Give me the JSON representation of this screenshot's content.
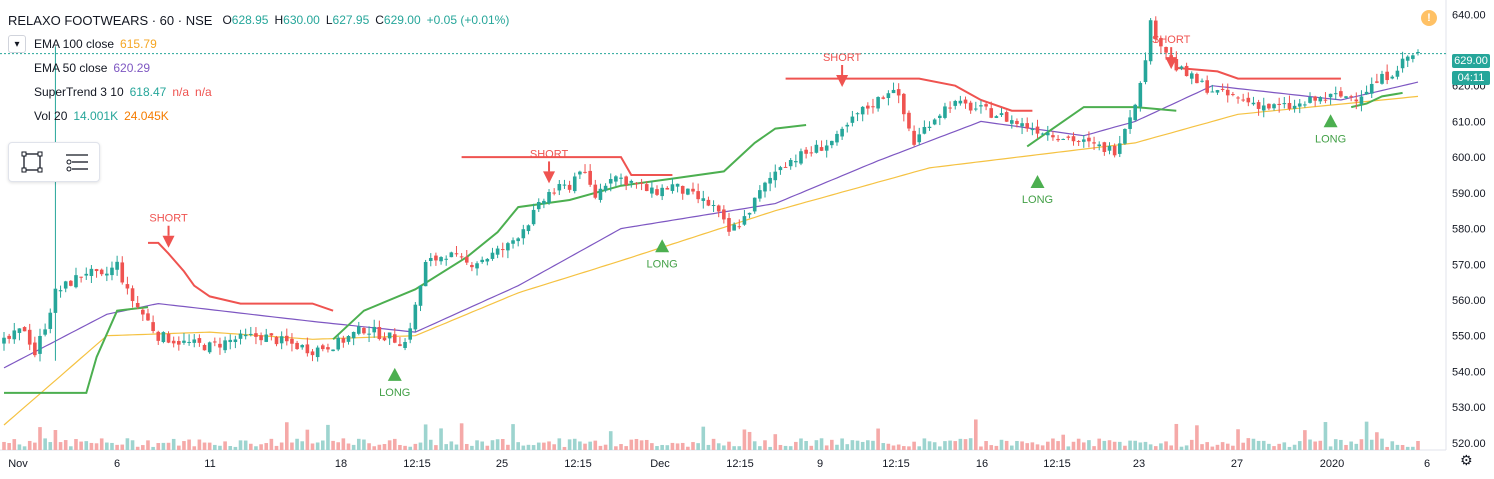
{
  "header": {
    "symbol_title": "RELAXO FOOTWEARS · 60 · NSE",
    "open_label": "O",
    "open": "628.95",
    "high_label": "H",
    "high": "630.00",
    "low_label": "L",
    "low": "627.95",
    "close_label": "C",
    "close": "629.00",
    "change": "+0.05 (+0.01%)"
  },
  "indicators": [
    {
      "name": "EMA 100 close",
      "values": [
        "615.79"
      ],
      "colors": [
        "#f5a623"
      ]
    },
    {
      "name": "EMA 50 close",
      "values": [
        "620.29"
      ],
      "colors": [
        "#7e57c2"
      ]
    },
    {
      "name": "SuperTrend 3 10",
      "values": [
        "618.47",
        "n/a",
        "n/a"
      ],
      "colors": [
        "#26a69a",
        "#ef5350",
        "#ef5350"
      ]
    },
    {
      "name": "Vol 20",
      "values": [
        "14.001K",
        "24.045K"
      ],
      "colors": [
        "#26a69a",
        "#f57c00"
      ]
    }
  ],
  "toggle_icon": "chevron-down-icon",
  "last_price_tag": "629.00",
  "countdown_tag": "04:11",
  "colors": {
    "up": "#26a69a",
    "down": "#ef5350",
    "supertrend_up": "#4caf50",
    "supertrend_down": "#ef5350",
    "ema100": "#f5c242",
    "ema50": "#7e57c2",
    "last_price": "#26a69a",
    "countdown": "#26a69a"
  },
  "chart_data": {
    "type": "candlestick",
    "title": "RELAXO FOOTWEARS · 60 · NSE",
    "x_ticks": [
      "Nov",
      "6",
      "11",
      "18",
      "12:15",
      "25",
      "12:15",
      "Dec",
      "12:15",
      "9",
      "12:15",
      "16",
      "12:15",
      "23",
      "27",
      "2020",
      "6"
    ],
    "y_ticks": [
      "520.00",
      "530.00",
      "540.00",
      "550.00",
      "560.00",
      "570.00",
      "580.00",
      "590.00",
      "600.00",
      "610.00",
      "620.00",
      "629.00",
      "640.00"
    ],
    "ylim": [
      518,
      644
    ],
    "closes_anchor": [
      [
        0,
        548
      ],
      [
        4,
        552
      ],
      [
        6,
        545
      ],
      [
        8,
        553
      ],
      [
        10,
        562
      ],
      [
        13,
        565
      ],
      [
        16,
        568
      ],
      [
        19,
        566
      ],
      [
        22,
        570
      ],
      [
        24,
        562
      ],
      [
        26,
        558
      ],
      [
        30,
        550
      ],
      [
        35,
        548
      ],
      [
        40,
        547
      ],
      [
        45,
        549
      ],
      [
        50,
        550
      ],
      [
        55,
        548
      ],
      [
        60,
        546
      ],
      [
        65,
        548
      ],
      [
        70,
        552
      ],
      [
        74,
        550
      ],
      [
        78,
        548
      ],
      [
        80,
        558
      ],
      [
        82,
        570
      ],
      [
        86,
        573
      ],
      [
        90,
        570
      ],
      [
        94,
        572
      ],
      [
        98,
        575
      ],
      [
        102,
        582
      ],
      [
        106,
        590
      ],
      [
        110,
        592
      ],
      [
        112,
        597
      ],
      [
        115,
        589
      ],
      [
        118,
        595
      ],
      [
        122,
        593
      ],
      [
        126,
        590
      ],
      [
        130,
        592
      ],
      [
        134,
        589
      ],
      [
        138,
        586
      ],
      [
        141,
        579
      ],
      [
        144,
        583
      ],
      [
        147,
        590
      ],
      [
        151,
        598
      ],
      [
        156,
        601
      ],
      [
        162,
        605
      ],
      [
        166,
        612
      ],
      [
        170,
        616
      ],
      [
        173,
        620
      ],
      [
        175,
        612
      ],
      [
        177,
        604
      ],
      [
        180,
        610
      ],
      [
        184,
        615
      ],
      [
        188,
        614
      ],
      [
        193,
        612
      ],
      [
        198,
        609
      ],
      [
        203,
        607
      ],
      [
        208,
        605
      ],
      [
        212,
        603
      ],
      [
        216,
        602
      ],
      [
        219,
        612
      ],
      [
        221,
        620
      ],
      [
        223,
        637
      ],
      [
        225,
        632
      ],
      [
        228,
        625
      ],
      [
        232,
        621
      ],
      [
        236,
        618
      ],
      [
        241,
        616
      ],
      [
        246,
        614
      ],
      [
        251,
        614
      ],
      [
        255,
        616
      ],
      [
        259,
        617
      ],
      [
        263,
        617
      ],
      [
        267,
        621
      ],
      [
        270,
        624
      ],
      [
        273,
        628
      ],
      [
        275,
        629
      ]
    ],
    "ema50_anchor": [
      [
        0,
        541
      ],
      [
        20,
        556
      ],
      [
        30,
        559
      ],
      [
        60,
        554
      ],
      [
        80,
        551
      ],
      [
        100,
        564
      ],
      [
        120,
        580
      ],
      [
        150,
        587
      ],
      [
        170,
        599
      ],
      [
        190,
        610
      ],
      [
        210,
        606
      ],
      [
        220,
        610
      ],
      [
        235,
        620
      ],
      [
        260,
        616
      ],
      [
        275,
        621
      ]
    ],
    "ema100_anchor": [
      [
        0,
        525
      ],
      [
        20,
        550
      ],
      [
        40,
        551
      ],
      [
        60,
        549
      ],
      [
        80,
        550
      ],
      [
        100,
        562
      ],
      [
        120,
        571
      ],
      [
        150,
        585
      ],
      [
        180,
        597
      ],
      [
        220,
        604
      ],
      [
        240,
        612
      ],
      [
        275,
        617
      ]
    ],
    "supertrend": {
      "upper_segments": [
        [
          [
            28,
            576
          ],
          [
            30,
            576
          ],
          [
            32,
            573
          ],
          [
            35,
            568
          ],
          [
            37,
            564
          ],
          [
            40,
            561
          ],
          [
            46,
            559
          ],
          [
            60,
            559
          ],
          [
            64,
            557
          ]
        ],
        [
          [
            89,
            600
          ],
          [
            120,
            600
          ],
          [
            122,
            595
          ],
          [
            130,
            595
          ]
        ],
        [
          [
            152,
            622
          ],
          [
            178,
            622
          ],
          [
            185,
            620
          ],
          [
            190,
            616
          ],
          [
            196,
            613
          ],
          [
            200,
            613
          ]
        ],
        [
          [
            228,
            625
          ],
          [
            236,
            624
          ],
          [
            240,
            622
          ],
          [
            260,
            622
          ]
        ]
      ],
      "lower_segments": [
        [
          [
            0,
            534
          ],
          [
            16,
            534
          ],
          [
            18,
            544
          ],
          [
            22,
            557
          ],
          [
            28,
            558
          ]
        ],
        [
          [
            64,
            549
          ],
          [
            70,
            557
          ],
          [
            80,
            563
          ],
          [
            90,
            572
          ],
          [
            96,
            579
          ],
          [
            100,
            586
          ],
          [
            110,
            588
          ],
          [
            120,
            592
          ],
          [
            130,
            594
          ],
          [
            140,
            596
          ],
          [
            146,
            604
          ],
          [
            150,
            608
          ],
          [
            156,
            609
          ]
        ],
        [
          [
            199,
            603
          ],
          [
            202,
            606
          ],
          [
            210,
            614
          ],
          [
            220,
            614
          ],
          [
            228,
            613
          ]
        ],
        [
          [
            262,
            614
          ],
          [
            265,
            615
          ],
          [
            268,
            617
          ],
          [
            272,
            618
          ]
        ]
      ]
    },
    "signals": [
      {
        "type": "SHORT",
        "index": 32,
        "price": 572
      },
      {
        "type": "LONG",
        "index": 76,
        "price": 543
      },
      {
        "type": "SHORT",
        "index": 106,
        "price": 590
      },
      {
        "type": "LONG",
        "index": 128,
        "price": 579
      },
      {
        "type": "SHORT",
        "index": 163,
        "price": 617
      },
      {
        "type": "LONG",
        "index": 201,
        "price": 597
      },
      {
        "type": "SHORT",
        "index": 227,
        "price": 622
      },
      {
        "type": "LONG",
        "index": 258,
        "price": 614
      }
    ]
  }
}
